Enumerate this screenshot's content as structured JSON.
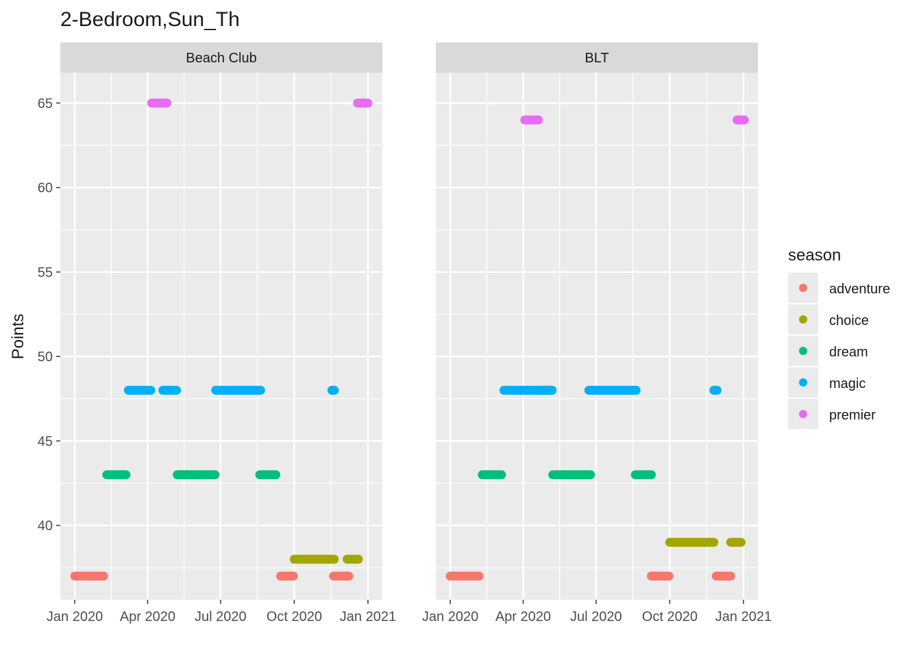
{
  "chart_data": {
    "type": "scatter",
    "title": "2-Bedroom,Sun_Th",
    "ylabel": "Points",
    "xlabel": "",
    "ylim": [
      35.6,
      66.8
    ],
    "y_ticks": [
      40,
      45,
      50,
      55,
      60,
      65
    ],
    "x_ticks": [
      "Jan 2020",
      "Apr 2020",
      "Jul 2020",
      "Oct 2020",
      "Jan 2021"
    ],
    "x_tick_dates": [
      "2020-01-01",
      "2020-04-01",
      "2020-07-01",
      "2020-10-01",
      "2021-01-01"
    ],
    "xlim": [
      "2019-12-14",
      "2021-01-19"
    ],
    "grid": true,
    "legend": {
      "title": "season",
      "position": "right",
      "entries": [
        {
          "name": "adventure",
          "color": "#F8766D"
        },
        {
          "name": "choice",
          "color": "#A3A500"
        },
        {
          "name": "dream",
          "color": "#00BF7D"
        },
        {
          "name": "magic",
          "color": "#00B0F6"
        },
        {
          "name": "premier",
          "color": "#E76BF3"
        }
      ]
    },
    "facets": [
      {
        "name": "Beach Club",
        "segments": [
          {
            "season": "adventure",
            "start": "2020-01-01",
            "end": "2020-02-06",
            "y": 37
          },
          {
            "season": "dream",
            "start": "2020-02-10",
            "end": "2020-03-05",
            "y": 43
          },
          {
            "season": "magic",
            "start": "2020-03-08",
            "end": "2020-04-05",
            "y": 48
          },
          {
            "season": "premier",
            "start": "2020-04-06",
            "end": "2020-04-25",
            "y": 65
          },
          {
            "season": "magic",
            "start": "2020-04-20",
            "end": "2020-05-07",
            "y": 48
          },
          {
            "season": "dream",
            "start": "2020-05-08",
            "end": "2020-06-24",
            "y": 43
          },
          {
            "season": "magic",
            "start": "2020-06-25",
            "end": "2020-08-20",
            "y": 48
          },
          {
            "season": "dream",
            "start": "2020-08-19",
            "end": "2020-09-08",
            "y": 43
          },
          {
            "season": "adventure",
            "start": "2020-09-14",
            "end": "2020-09-30",
            "y": 37
          },
          {
            "season": "choice",
            "start": "2020-10-01",
            "end": "2020-11-20",
            "y": 38
          },
          {
            "season": "magic",
            "start": "2020-11-17",
            "end": "2020-11-20",
            "y": 48
          },
          {
            "season": "adventure",
            "start": "2020-11-19",
            "end": "2020-12-08",
            "y": 37
          },
          {
            "season": "choice",
            "start": "2020-12-06",
            "end": "2020-12-20",
            "y": 38
          },
          {
            "season": "premier",
            "start": "2020-12-19",
            "end": "2021-01-01",
            "y": 65
          }
        ]
      },
      {
        "name": "BLT",
        "segments": [
          {
            "season": "adventure",
            "start": "2020-01-01",
            "end": "2020-02-06",
            "y": 37
          },
          {
            "season": "dream",
            "start": "2020-02-10",
            "end": "2020-03-05",
            "y": 43
          },
          {
            "season": "magic",
            "start": "2020-03-08",
            "end": "2020-05-07",
            "y": 48
          },
          {
            "season": "premier",
            "start": "2020-04-03",
            "end": "2020-04-20",
            "y": 64
          },
          {
            "season": "magic",
            "start": "2020-04-20",
            "end": "2020-05-07",
            "y": 48
          },
          {
            "season": "dream",
            "start": "2020-05-08",
            "end": "2020-06-24",
            "y": 43
          },
          {
            "season": "magic",
            "start": "2020-06-22",
            "end": "2020-08-20",
            "y": 48
          },
          {
            "season": "dream",
            "start": "2020-08-19",
            "end": "2020-09-08",
            "y": 43
          },
          {
            "season": "adventure",
            "start": "2020-09-08",
            "end": "2020-09-30",
            "y": 37
          },
          {
            "season": "choice",
            "start": "2020-10-01",
            "end": "2020-11-25",
            "y": 39
          },
          {
            "season": "magic",
            "start": "2020-11-25",
            "end": "2020-11-29",
            "y": 48
          },
          {
            "season": "adventure",
            "start": "2020-11-28",
            "end": "2020-12-16",
            "y": 37
          },
          {
            "season": "choice",
            "start": "2020-12-16",
            "end": "2020-12-29",
            "y": 39
          },
          {
            "season": "premier",
            "start": "2020-12-24",
            "end": "2021-01-02",
            "y": 64
          }
        ]
      }
    ]
  }
}
